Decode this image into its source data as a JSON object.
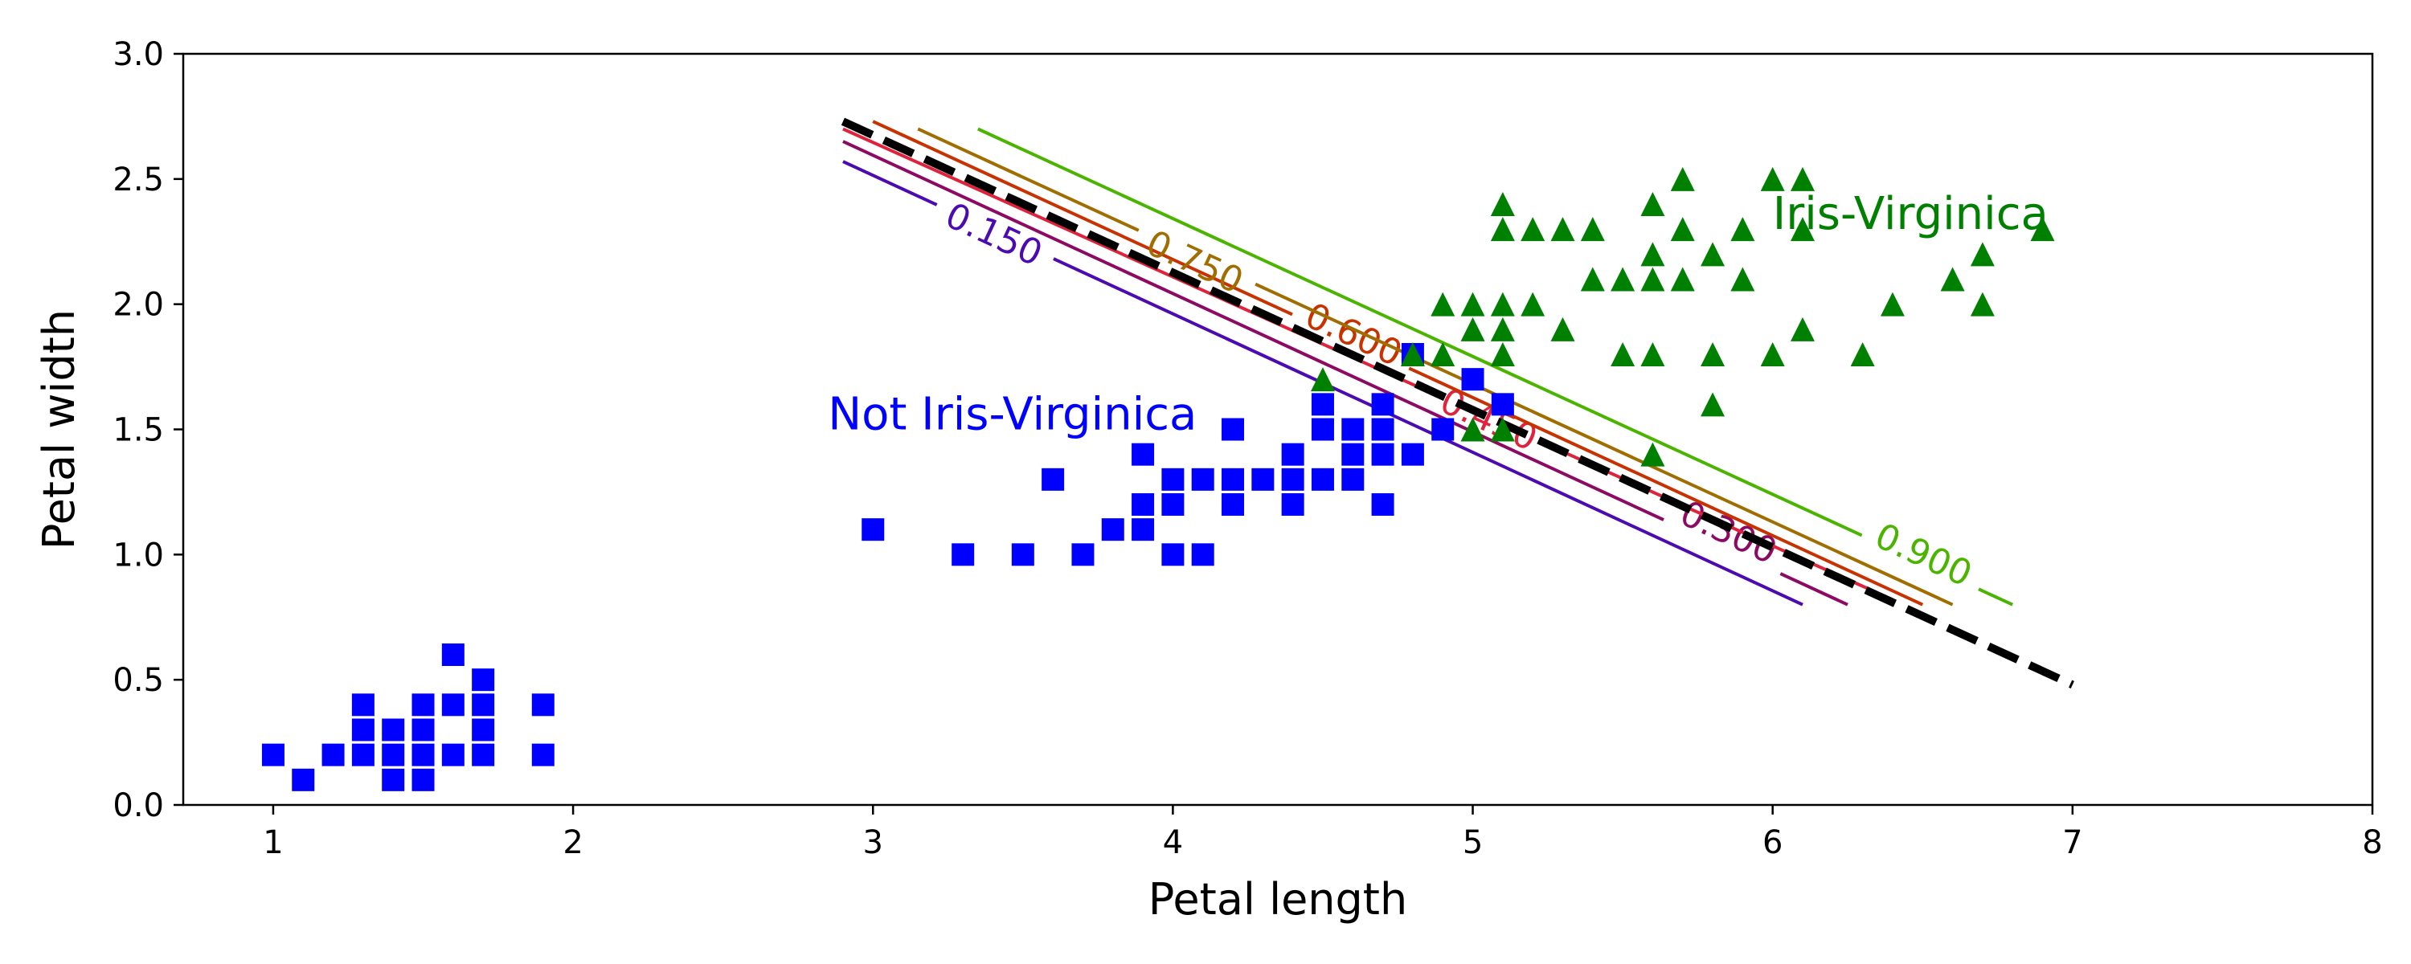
{
  "chart_data": {
    "type": "scatter",
    "xlabel": "Petal length",
    "ylabel": "Petal width",
    "xlim": [
      0.7,
      8
    ],
    "ylim": [
      0,
      3
    ],
    "x_ticks": [
      1,
      2,
      3,
      4,
      5,
      6,
      7,
      8
    ],
    "y_ticks": [
      "0.0",
      "0.5",
      "1.0",
      "1.5",
      "2.0",
      "2.5",
      "3.0"
    ],
    "grid": false,
    "series": [
      {
        "marker": "square",
        "color": "#0000ff",
        "points": [
          [
            1.0,
            0.2
          ],
          [
            1.1,
            0.1
          ],
          [
            1.2,
            0.2
          ],
          [
            1.3,
            0.2
          ],
          [
            1.3,
            0.3
          ],
          [
            1.3,
            0.4
          ],
          [
            1.4,
            0.1
          ],
          [
            1.4,
            0.2
          ],
          [
            1.4,
            0.3
          ],
          [
            1.5,
            0.1
          ],
          [
            1.5,
            0.2
          ],
          [
            1.5,
            0.3
          ],
          [
            1.5,
            0.4
          ],
          [
            1.6,
            0.2
          ],
          [
            1.6,
            0.4
          ],
          [
            1.6,
            0.6
          ],
          [
            1.7,
            0.2
          ],
          [
            1.7,
            0.3
          ],
          [
            1.7,
            0.4
          ],
          [
            1.7,
            0.5
          ],
          [
            1.9,
            0.2
          ],
          [
            1.9,
            0.4
          ],
          [
            3.0,
            1.1
          ],
          [
            3.3,
            1.0
          ],
          [
            3.5,
            1.0
          ],
          [
            3.6,
            1.3
          ],
          [
            3.7,
            1.0
          ],
          [
            3.8,
            1.1
          ],
          [
            3.9,
            1.1
          ],
          [
            3.9,
            1.2
          ],
          [
            3.9,
            1.4
          ],
          [
            4.0,
            1.0
          ],
          [
            4.0,
            1.2
          ],
          [
            4.0,
            1.3
          ],
          [
            4.1,
            1.0
          ],
          [
            4.1,
            1.3
          ],
          [
            4.2,
            1.2
          ],
          [
            4.2,
            1.3
          ],
          [
            4.2,
            1.5
          ],
          [
            4.3,
            1.3
          ],
          [
            4.4,
            1.2
          ],
          [
            4.4,
            1.3
          ],
          [
            4.4,
            1.4
          ],
          [
            4.5,
            1.3
          ],
          [
            4.5,
            1.5
          ],
          [
            4.5,
            1.6
          ],
          [
            4.6,
            1.3
          ],
          [
            4.6,
            1.4
          ],
          [
            4.6,
            1.5
          ],
          [
            4.7,
            1.2
          ],
          [
            4.7,
            1.4
          ],
          [
            4.7,
            1.5
          ],
          [
            4.7,
            1.6
          ],
          [
            4.8,
            1.4
          ],
          [
            4.8,
            1.8
          ],
          [
            4.9,
            1.5
          ],
          [
            5.0,
            1.7
          ],
          [
            5.1,
            1.6
          ]
        ]
      },
      {
        "marker": "triangle",
        "color": "#008000",
        "points": [
          [
            4.5,
            1.7
          ],
          [
            4.8,
            1.8
          ],
          [
            4.9,
            1.8
          ],
          [
            4.9,
            2.0
          ],
          [
            5.0,
            1.5
          ],
          [
            5.0,
            1.9
          ],
          [
            5.0,
            2.0
          ],
          [
            5.1,
            1.5
          ],
          [
            5.1,
            1.8
          ],
          [
            5.1,
            1.9
          ],
          [
            5.1,
            2.0
          ],
          [
            5.1,
            2.3
          ],
          [
            5.1,
            2.4
          ],
          [
            5.2,
            2.0
          ],
          [
            5.2,
            2.3
          ],
          [
            5.3,
            1.9
          ],
          [
            5.3,
            2.3
          ],
          [
            5.4,
            2.1
          ],
          [
            5.4,
            2.3
          ],
          [
            5.5,
            1.8
          ],
          [
            5.5,
            2.1
          ],
          [
            5.6,
            1.4
          ],
          [
            5.6,
            1.8
          ],
          [
            5.6,
            2.1
          ],
          [
            5.6,
            2.2
          ],
          [
            5.6,
            2.4
          ],
          [
            5.7,
            2.1
          ],
          [
            5.7,
            2.3
          ],
          [
            5.7,
            2.5
          ],
          [
            5.8,
            1.6
          ],
          [
            5.8,
            1.8
          ],
          [
            5.8,
            2.2
          ],
          [
            5.9,
            2.1
          ],
          [
            5.9,
            2.3
          ],
          [
            6.0,
            1.8
          ],
          [
            6.0,
            2.5
          ],
          [
            6.1,
            1.9
          ],
          [
            6.1,
            2.3
          ],
          [
            6.1,
            2.5
          ],
          [
            6.3,
            1.8
          ],
          [
            6.4,
            2.0
          ],
          [
            6.6,
            2.1
          ],
          [
            6.7,
            2.0
          ],
          [
            6.7,
            2.2
          ],
          [
            6.9,
            2.3
          ]
        ]
      }
    ],
    "region_labels": [
      {
        "text": "Not Iris-Virginica",
        "color": "#0000ff",
        "at": [
          2.85,
          1.5
        ]
      },
      {
        "text": "Iris-Virginica",
        "color": "#008000",
        "at": [
          6.0,
          2.3
        ]
      }
    ],
    "decision_boundary": {
      "style": "dashed",
      "color": "#000000",
      "from": [
        2.9,
        2.73
      ],
      "to": [
        7.0,
        0.48
      ]
    },
    "contours": [
      {
        "label": "0.150",
        "color": "#4b0bb0",
        "from": [
          2.9,
          2.57
        ],
        "to": [
          6.1,
          0.8
        ],
        "label_at": [
          3.4,
          2.27
        ]
      },
      {
        "label": "0.300",
        "color": "#8c0a64",
        "from": [
          2.9,
          2.65
        ],
        "to": [
          6.25,
          0.8
        ],
        "label_at": [
          5.85,
          1.08
        ]
      },
      {
        "label": "0.450",
        "color": "#e0233c",
        "from": [
          2.9,
          2.7
        ],
        "to": [
          6.4,
          0.82
        ],
        "label_at": [
          5.05,
          1.53
        ]
      },
      {
        "label": "0.600",
        "color": "#c83200",
        "from": [
          3.0,
          2.73
        ],
        "to": [
          6.5,
          0.8
        ],
        "label_at": [
          4.6,
          1.87
        ]
      },
      {
        "label": "0.750",
        "color": "#a06e00",
        "from": [
          3.15,
          2.7
        ],
        "to": [
          6.6,
          0.8
        ],
        "label_at": [
          4.07,
          2.16
        ]
      },
      {
        "label": "0.900",
        "color": "#4bb400",
        "from": [
          3.35,
          2.7
        ],
        "to": [
          6.8,
          0.8
        ],
        "label_at": [
          6.5,
          0.99
        ]
      }
    ]
  }
}
